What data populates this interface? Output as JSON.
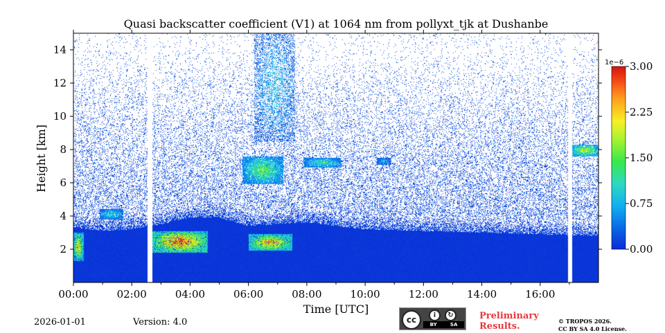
{
  "header": {
    "title": "Quasi backscatter coefficient (V1) at 1064 nm from pollyxt_tjk at Dushanbe"
  },
  "footer": {
    "date": "2026-01-01",
    "version": "Version: 4.0",
    "preliminary_line1": "Preliminary",
    "preliminary_line2": "Results.",
    "copyright_line1": "© TROPOS 2026.",
    "copyright_line2": "CC BY SA 4.0 License.",
    "license_badge": {
      "cc": "cc",
      "by": "BY",
      "sa": "SA"
    }
  },
  "chart_data": {
    "type": "heatmap",
    "title": "Quasi backscatter coefficient (V1) at 1064 nm from pollyxt_tjk at Dushanbe",
    "xlabel": "Time [UTC]",
    "ylabel": "Height [km]",
    "xlim_hours": [
      0,
      18
    ],
    "ylim_km": [
      0,
      15
    ],
    "x_ticks": [
      "00:00",
      "02:00",
      "04:00",
      "06:00",
      "08:00",
      "10:00",
      "12:00",
      "14:00",
      "16:00"
    ],
    "x_tick_hours": [
      0,
      2,
      4,
      6,
      8,
      10,
      12,
      14,
      16
    ],
    "y_ticks": [
      "2",
      "4",
      "6",
      "8",
      "10",
      "12",
      "14"
    ],
    "y_tick_values": [
      2,
      4,
      6,
      8,
      10,
      12,
      14
    ],
    "colorbar": {
      "label_exponent": "1e−6",
      "ticks": [
        "0.00",
        "0.75",
        "1.50",
        "2.25",
        "3.00"
      ],
      "tick_values": [
        0,
        0.75,
        1.5,
        2.25,
        3.0
      ],
      "range": [
        0,
        3.0
      ],
      "colormap": [
        "#0a2bd6",
        "#0a6be6",
        "#11b0f0",
        "#2fd9c0",
        "#38e84b",
        "#a7f22f",
        "#f7f026",
        "#ffa21e",
        "#f54a16",
        "#d3140c"
      ]
    },
    "data_gaps_hours": [
      [
        2.55,
        2.7
      ],
      [
        16.95,
        17.1
      ]
    ],
    "boundary_layer_top_km": [
      [
        0,
        3.3
      ],
      [
        1,
        3.1
      ],
      [
        2,
        3.2
      ],
      [
        3,
        3.5
      ],
      [
        4,
        3.9
      ],
      [
        5,
        3.9
      ],
      [
        6,
        3.4
      ],
      [
        8,
        3.6
      ],
      [
        10,
        3.2
      ],
      [
        12,
        3.1
      ],
      [
        14,
        3.0
      ],
      [
        16,
        2.9
      ],
      [
        18,
        2.8
      ]
    ],
    "features": [
      {
        "name": "lower aerosol/cloud",
        "t_start": 0.0,
        "t_end": 0.35,
        "h_bottom": 1.3,
        "h_top": 3.0,
        "intensity": 2.4
      },
      {
        "name": "elevated layer",
        "t_start": 0.9,
        "t_end": 1.7,
        "h_bottom": 3.8,
        "h_top": 4.4,
        "intensity": 1.1
      },
      {
        "name": "dense layer",
        "t_start": 2.7,
        "t_end": 4.6,
        "h_bottom": 1.8,
        "h_top": 3.1,
        "intensity": 3.0
      },
      {
        "name": "dense layer",
        "t_start": 6.0,
        "t_end": 7.5,
        "h_bottom": 1.9,
        "h_top": 2.9,
        "intensity": 2.6
      },
      {
        "name": "mid-level cloud",
        "t_start": 5.8,
        "t_end": 7.2,
        "h_bottom": 5.9,
        "h_top": 7.6,
        "intensity": 1.6
      },
      {
        "name": "mid-level cloud",
        "t_start": 7.9,
        "t_end": 9.2,
        "h_bottom": 6.9,
        "h_top": 7.5,
        "intensity": 1.3
      },
      {
        "name": "mid-level cloud",
        "t_start": 10.4,
        "t_end": 10.9,
        "h_bottom": 7.1,
        "h_top": 7.5,
        "intensity": 0.8
      },
      {
        "name": "upper cloud",
        "t_start": 17.1,
        "t_end": 18.0,
        "h_bottom": 7.6,
        "h_top": 8.3,
        "intensity": 2.0
      },
      {
        "name": "cirrus",
        "t_start": 6.2,
        "t_end": 7.6,
        "h_bottom": 8.5,
        "h_top": 15.0,
        "intensity": 0.9
      }
    ]
  }
}
